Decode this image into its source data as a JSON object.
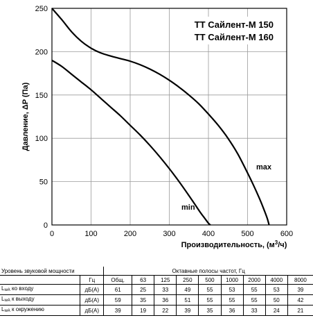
{
  "chart_data": {
    "type": "line",
    "title_lines": [
      "ТТ Сайлент-М 150",
      "ТТ Сайлент-М 160"
    ],
    "xlabel": "Производительность, (м",
    "xlabel_sup": "3",
    "xlabel_suffix": "/ч)",
    "ylabel": "Давление, ΔP (Па)",
    "xlim": [
      0,
      600
    ],
    "ylim": [
      0,
      250
    ],
    "xticks": [
      0,
      100,
      200,
      300,
      400,
      500,
      600
    ],
    "yticks": [
      0,
      50,
      100,
      150,
      200,
      250
    ],
    "grid": true,
    "series": [
      {
        "name": "max",
        "x": [
          0,
          25,
          50,
          75,
          100,
          125,
          150,
          175,
          200,
          225,
          250,
          275,
          300,
          325,
          350,
          375,
          400,
          425,
          450,
          475,
          500,
          515,
          530,
          540,
          550,
          555
        ],
        "y": [
          250,
          237,
          223,
          212,
          204,
          198.5,
          195,
          192,
          189,
          185,
          180,
          174,
          167,
          159,
          150,
          140,
          128,
          115,
          100,
          82,
          60,
          46,
          31,
          20,
          8,
          0
        ]
      },
      {
        "name": "min",
        "x": [
          0,
          25,
          50,
          75,
          100,
          125,
          150,
          175,
          200,
          225,
          250,
          275,
          300,
          325,
          350,
          365,
          380,
          390,
          400,
          405
        ],
        "y": [
          190,
          183,
          174,
          165,
          156,
          146,
          136,
          126,
          115,
          104,
          92,
          79,
          65,
          50,
          34,
          24,
          14,
          8,
          2,
          0
        ]
      }
    ]
  },
  "table": {
    "title": "Уровень звуковой мощности",
    "bands_title": "Октавные полосы частот, Гц",
    "unit_header": "Гц",
    "columns": [
      "Общ.",
      "63",
      "125",
      "250",
      "500",
      "1000",
      "2000",
      "4000",
      "8000"
    ],
    "rows": [
      {
        "sub": "wA",
        "label": " ко входу",
        "unit": "дБ(А)",
        "values": [
          "61",
          "25",
          "33",
          "49",
          "55",
          "53",
          "55",
          "53",
          "39"
        ]
      },
      {
        "sub": "wA",
        "label": " к выходу",
        "unit": "дБ(А)",
        "values": [
          "59",
          "35",
          "36",
          "51",
          "55",
          "55",
          "55",
          "50",
          "42"
        ]
      },
      {
        "sub": "wA",
        "label": " к окружению",
        "unit": "дБ(А)",
        "values": [
          "39",
          "19",
          "22",
          "39",
          "35",
          "36",
          "33",
          "24",
          "21"
        ]
      }
    ],
    "row_prefix": "L"
  }
}
